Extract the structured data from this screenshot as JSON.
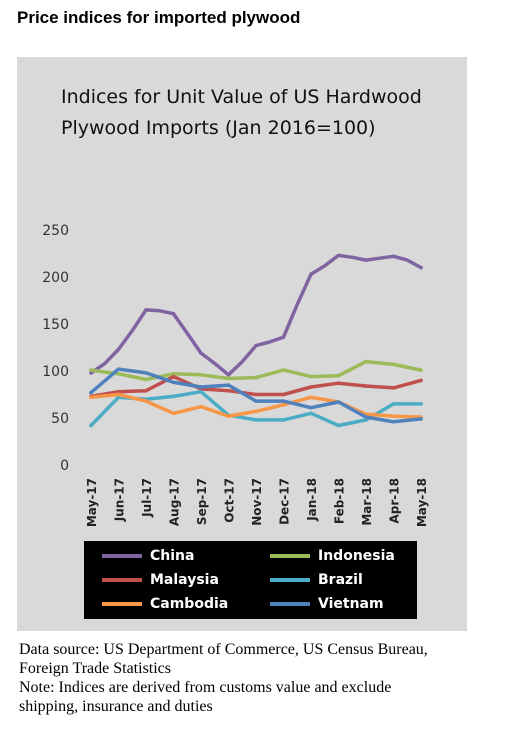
{
  "heading": "Price indices for imported plywood",
  "chart_data": {
    "type": "line",
    "title_lines": [
      "Indices for Unit Value of US Hardwood",
      "Plywood Imports (Jan 2016=100)"
    ],
    "categories": [
      "May-17",
      "Jun-17",
      "Jul-17",
      "Aug-17",
      "Sep-17",
      "Oct-17",
      "Nov-17",
      "Dec-17",
      "Jan-18",
      "Feb-18",
      "Mar-18",
      "Apr-18",
      "May-18"
    ],
    "y_ticks": [
      "250",
      "200",
      "150",
      "100",
      "50",
      "0"
    ],
    "ylim": [
      0,
      250
    ],
    "grid": false,
    "legend_position": "bottom",
    "series": [
      {
        "name": "China",
        "color": "#8064a2",
        "points": [
          [
            0,
            98
          ],
          [
            0.5,
            108
          ],
          [
            1,
            123
          ],
          [
            1.5,
            143
          ],
          [
            2,
            165
          ],
          [
            2.5,
            164
          ],
          [
            3,
            161
          ],
          [
            3.5,
            140
          ],
          [
            4,
            119
          ],
          [
            4.5,
            108
          ],
          [
            5,
            96
          ],
          [
            5.5,
            110
          ],
          [
            6,
            127
          ],
          [
            6.5,
            131
          ],
          [
            7,
            136
          ],
          [
            7.5,
            171
          ],
          [
            8,
            203
          ],
          [
            8.5,
            212
          ],
          [
            9,
            223
          ],
          [
            9.5,
            221
          ],
          [
            10,
            218
          ],
          [
            10.5,
            220
          ],
          [
            11,
            222
          ],
          [
            11.5,
            218
          ],
          [
            12,
            210
          ]
        ]
      },
      {
        "name": "Indonesia",
        "color": "#9bbb59",
        "points": [
          [
            0,
            101
          ],
          [
            1,
            97
          ],
          [
            2,
            91
          ],
          [
            3,
            97
          ],
          [
            4,
            96
          ],
          [
            5,
            92
          ],
          [
            6,
            93
          ],
          [
            7,
            101
          ],
          [
            8,
            94
          ],
          [
            9,
            95
          ],
          [
            10,
            110
          ],
          [
            11,
            107
          ],
          [
            12,
            101
          ]
        ]
      },
      {
        "name": "Malaysia",
        "color": "#c0504d",
        "points": [
          [
            0,
            73
          ],
          [
            1,
            78
          ],
          [
            2,
            79
          ],
          [
            3,
            94
          ],
          [
            4,
            81
          ],
          [
            5,
            79
          ],
          [
            6,
            75
          ],
          [
            7,
            75
          ],
          [
            8,
            83
          ],
          [
            9,
            87
          ],
          [
            10,
            84
          ],
          [
            11,
            82
          ],
          [
            12,
            90
          ]
        ]
      },
      {
        "name": "Brazil",
        "color": "#4bacc6",
        "points": [
          [
            0,
            42
          ],
          [
            1,
            72
          ],
          [
            2,
            70
          ],
          [
            3,
            73
          ],
          [
            4,
            78
          ],
          [
            5,
            53
          ],
          [
            6,
            48
          ],
          [
            7,
            48
          ],
          [
            8,
            55
          ],
          [
            9,
            42
          ],
          [
            10,
            48
          ],
          [
            11,
            65
          ],
          [
            12,
            65
          ]
        ]
      },
      {
        "name": "Cambodia",
        "color": "#f79646",
        "points": [
          [
            0,
            72
          ],
          [
            1,
            75
          ],
          [
            2,
            68
          ],
          [
            3,
            55
          ],
          [
            4,
            62
          ],
          [
            5,
            52
          ],
          [
            6,
            57
          ],
          [
            7,
            64
          ],
          [
            8,
            72
          ],
          [
            9,
            67
          ],
          [
            10,
            54
          ],
          [
            11,
            52
          ],
          [
            12,
            51
          ]
        ]
      },
      {
        "name": "Vietnam",
        "color": "#4f81bd",
        "points": [
          [
            0,
            77
          ],
          [
            1,
            102
          ],
          [
            2,
            98
          ],
          [
            3,
            88
          ],
          [
            4,
            83
          ],
          [
            5,
            85
          ],
          [
            6,
            68
          ],
          [
            7,
            68
          ],
          [
            8,
            61
          ],
          [
            9,
            67
          ],
          [
            10,
            51
          ],
          [
            11,
            46
          ],
          [
            12,
            49
          ]
        ]
      }
    ]
  },
  "legend": [
    {
      "name": "China",
      "color": "#8064a2"
    },
    {
      "name": "Indonesia",
      "color": "#9bbb59"
    },
    {
      "name": "Malaysia",
      "color": "#c0504d"
    },
    {
      "name": "Brazil",
      "color": "#4bacc6"
    },
    {
      "name": "Cambodia",
      "color": "#f79646"
    },
    {
      "name": "Vietnam",
      "color": "#4f81bd"
    }
  ],
  "notes": {
    "source_line1": "Data source: US Department of Commerce, US Census Bureau,",
    "source_line2": "Foreign Trade Statistics",
    "note_line1": "Note: Indices are derived from customs value and exclude",
    "note_line2": "shipping, insurance and duties"
  }
}
